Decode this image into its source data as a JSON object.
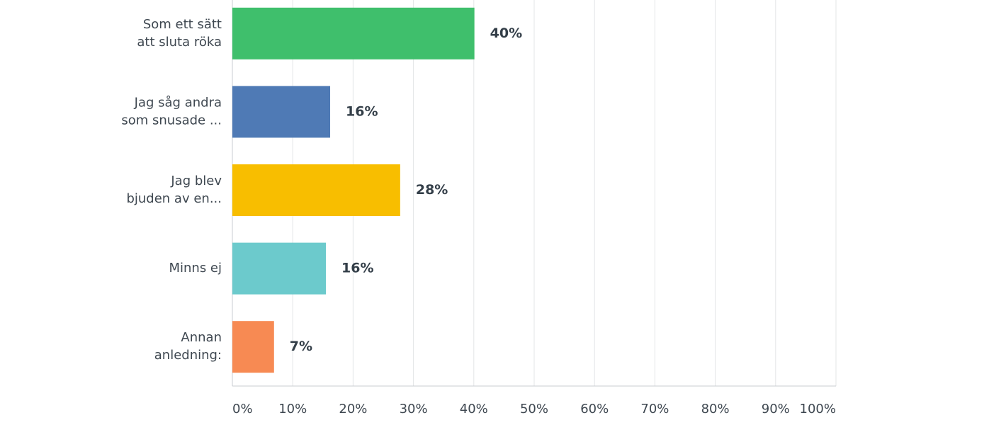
{
  "chart_data": {
    "type": "hbar",
    "categories": [
      "Som ett sätt\natt sluta röka",
      "Jag såg andra\nsom snusade ...",
      "Jag blev\nbjuden av en...",
      "Minns ej",
      "Annan\nanledning:"
    ],
    "values": [
      40.1,
      16.2,
      27.8,
      15.5,
      6.9
    ],
    "value_labels": [
      "40%",
      "16%",
      "28%",
      "16%",
      "7%"
    ],
    "colors": [
      "#3fbf6c",
      "#4f7ab5",
      "#f8be00",
      "#6ccacc",
      "#f78a53"
    ],
    "xlim": [
      0,
      100
    ],
    "xticks": [
      {
        "value": 0,
        "label": "0%"
      },
      {
        "value": 10,
        "label": "10%"
      },
      {
        "value": 20,
        "label": "20%"
      },
      {
        "value": 30,
        "label": "30%"
      },
      {
        "value": 40,
        "label": "40%"
      },
      {
        "value": 50,
        "label": "50%"
      },
      {
        "value": 60,
        "label": "60%"
      },
      {
        "value": 70,
        "label": "70%"
      },
      {
        "value": 80,
        "label": "80%"
      },
      {
        "value": 90,
        "label": "90%"
      },
      {
        "value": 100,
        "label": "100%"
      }
    ],
    "grid": true
  }
}
